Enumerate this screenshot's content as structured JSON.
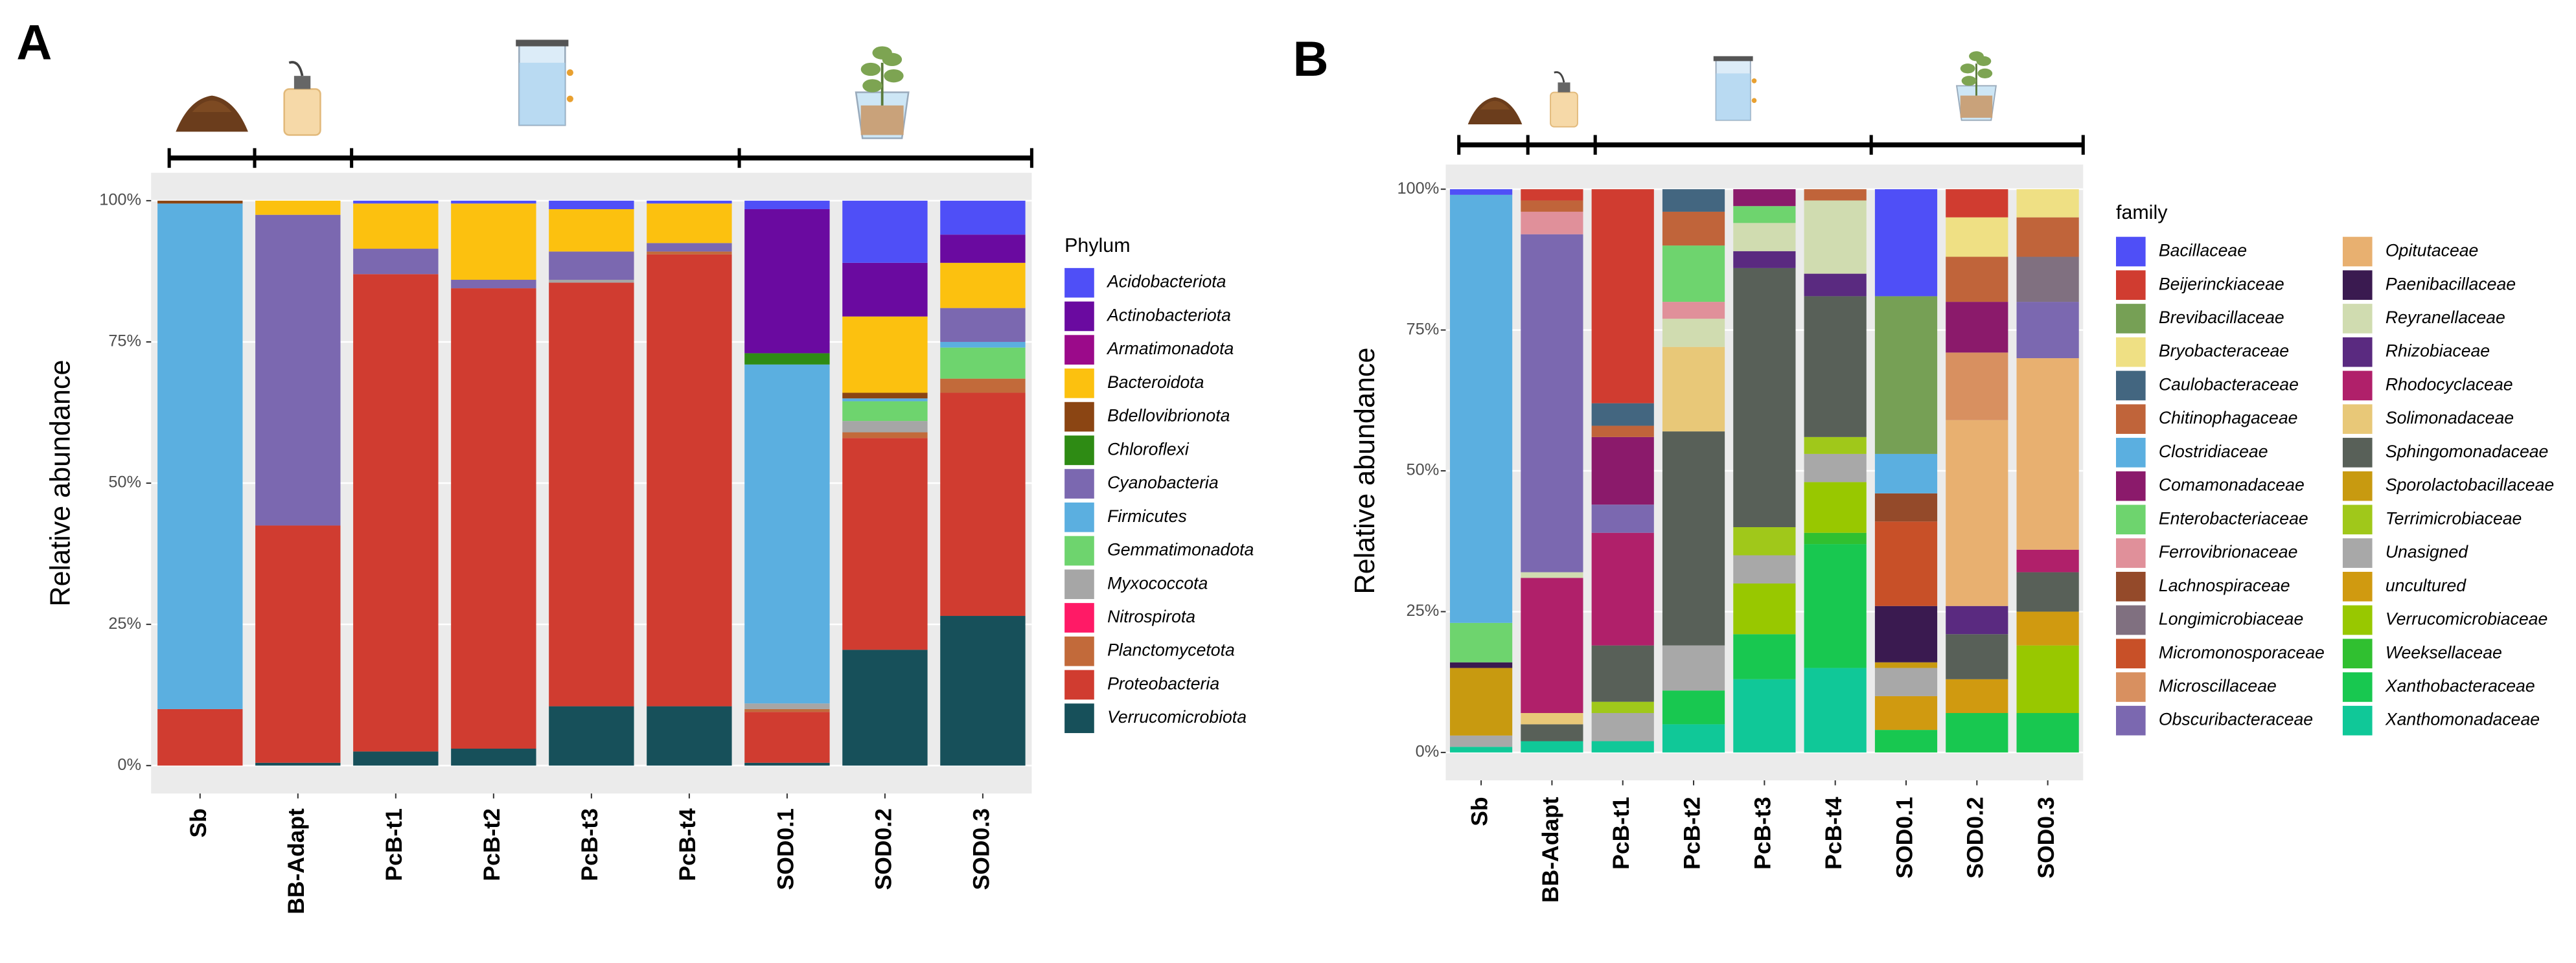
{
  "chart_data": [
    {
      "type": "bar",
      "stacked": true,
      "panel_label": "A",
      "y_label": "Relative abundance",
      "legend_title": "Phylum",
      "legend": "right",
      "grid": true,
      "categories": [
        "Sb",
        "BB-Adapt",
        "PcB-t1",
        "PcB-t2",
        "PcB-t3",
        "PcB-t4",
        "SOD0.1",
        "SOD0.2",
        "SOD0.3"
      ],
      "ylim": [
        0,
        100
      ],
      "yticks": [
        {
          "value": 0,
          "label": "0%"
        },
        {
          "value": 25,
          "label": "25%"
        },
        {
          "value": 50,
          "label": "50%"
        },
        {
          "value": 75,
          "label": "75%"
        },
        {
          "value": 100,
          "label": "100%"
        }
      ],
      "series": [
        {
          "name": "Acidobacteriota",
          "color": "#4f4ff7",
          "values": [
            0,
            0,
            0.5,
            0.5,
            1.5,
            0.5,
            1.5,
            11,
            6
          ]
        },
        {
          "name": "Actinobacteriota",
          "color": "#6a0aa0",
          "values": [
            0,
            0,
            0,
            0,
            0,
            0,
            25.5,
            9.5,
            5
          ]
        },
        {
          "name": "Armatimonadota",
          "color": "#9b0a8a",
          "values": [
            0,
            0,
            0,
            0,
            0,
            0,
            0,
            0,
            0
          ]
        },
        {
          "name": "Bacteroidota",
          "color": "#fcc10f",
          "values": [
            0,
            2.5,
            8,
            13.5,
            7.5,
            7,
            0,
            13.5,
            8
          ]
        },
        {
          "name": "Bdellovibrionota",
          "color": "#8b4513",
          "values": [
            0.5,
            0,
            0,
            0,
            0,
            0,
            0,
            1,
            0
          ]
        },
        {
          "name": "Chloroflexi",
          "color": "#2e8b14",
          "values": [
            0,
            0,
            0,
            0,
            0,
            0,
            2,
            0,
            0
          ]
        },
        {
          "name": "Cyanobacteria",
          "color": "#7b68b0",
          "values": [
            0,
            55,
            4.5,
            1.5,
            5,
            1.5,
            0,
            0,
            6
          ]
        },
        {
          "name": "Firmicutes",
          "color": "#5bafe0",
          "values": [
            89.5,
            0,
            0,
            0,
            0,
            0,
            60,
            0.5,
            1
          ]
        },
        {
          "name": "Gemmatimonadota",
          "color": "#6ed46e",
          "values": [
            0,
            0,
            0,
            0,
            0,
            0,
            0,
            3.5,
            5.5
          ]
        },
        {
          "name": "Myxococcota",
          "color": "#a6a6a6",
          "values": [
            0,
            0,
            0,
            0,
            0.5,
            0,
            1,
            2,
            0
          ]
        },
        {
          "name": "Nitrospirota",
          "color": "#ff1a66",
          "values": [
            0,
            0,
            0,
            0,
            0,
            0,
            0,
            0,
            0
          ]
        },
        {
          "name": "Planctomycetota",
          "color": "#c26a3a",
          "values": [
            0,
            0,
            0,
            0,
            0,
            0.5,
            0.5,
            1,
            2.5
          ]
        },
        {
          "name": "Proteobacteria",
          "color": "#d03c30",
          "values": [
            10,
            42,
            84.5,
            81.5,
            75,
            80,
            9,
            37.5,
            39.5
          ]
        },
        {
          "name": "Verrucomicrobiota",
          "color": "#17505a",
          "values": [
            0,
            0.5,
            2.5,
            3,
            10.5,
            10.5,
            0.5,
            20.5,
            26.5
          ]
        }
      ]
    },
    {
      "type": "bar",
      "stacked": true,
      "panel_label": "B",
      "y_label": "Relative abundance",
      "legend_title": "family",
      "legend": "right",
      "grid": true,
      "categories": [
        "Sb",
        "BB-Adapt",
        "PcB-t1",
        "PcB-t2",
        "PcB-t3",
        "PcB-t4",
        "SOD0.1",
        "SOD0.2",
        "SOD0.3"
      ],
      "ylim": [
        0,
        100
      ],
      "yticks": [
        {
          "value": 0,
          "label": "0%"
        },
        {
          "value": 25,
          "label": "25%"
        },
        {
          "value": 50,
          "label": "50%"
        },
        {
          "value": 75,
          "label": "75%"
        },
        {
          "value": 100,
          "label": "100%"
        }
      ],
      "series": [
        {
          "name": "Bacillaceae",
          "color": "#4f4ff7",
          "values": [
            1,
            0,
            0,
            0,
            0,
            0,
            19,
            0,
            0
          ]
        },
        {
          "name": "Beijerinckiaceae",
          "color": "#d03c30",
          "values": [
            0,
            2,
            38,
            0,
            0,
            0,
            0,
            5,
            0
          ]
        },
        {
          "name": "Brevibacillaceae",
          "color": "#76a055",
          "values": [
            0,
            0,
            0,
            0,
            0,
            0,
            28,
            0,
            0
          ]
        },
        {
          "name": "Bryobacteraceae",
          "color": "#efe084",
          "values": [
            0,
            0,
            0,
            0,
            0,
            0,
            0,
            7,
            5
          ]
        },
        {
          "name": "Caulobacteraceae",
          "color": "#436680",
          "values": [
            0,
            0,
            4,
            4,
            0,
            0,
            0,
            0,
            0
          ]
        },
        {
          "name": "Chitinophagaceae",
          "color": "#c0643a",
          "values": [
            0,
            2,
            2,
            6,
            0,
            2,
            0,
            8,
            7
          ]
        },
        {
          "name": "Clostridiaceae",
          "color": "#5bafe0",
          "values": [
            76,
            0,
            0,
            0,
            0,
            0,
            7,
            0,
            0
          ]
        },
        {
          "name": "Comamonadaceae",
          "color": "#8b1a6b",
          "values": [
            0,
            0,
            12,
            0,
            3,
            0,
            0,
            9,
            0
          ]
        },
        {
          "name": "Enterobacteriaceae",
          "color": "#6ed46e",
          "values": [
            7,
            0,
            0,
            10,
            3,
            0,
            0,
            0,
            0
          ]
        },
        {
          "name": "Ferrovibrionaceae",
          "color": "#e0909a",
          "values": [
            0,
            4,
            0,
            3,
            0,
            0,
            0,
            0,
            0
          ]
        },
        {
          "name": "Lachnospiraceae",
          "color": "#944a2a",
          "values": [
            0,
            0,
            0,
            0,
            0,
            0,
            5,
            0,
            0
          ]
        },
        {
          "name": "Longimicrobiaceae",
          "color": "#807080",
          "values": [
            0,
            0,
            0,
            0,
            0,
            0,
            0,
            0,
            8
          ]
        },
        {
          "name": "Micromonosporaceae",
          "color": "#c85028",
          "values": [
            0,
            0,
            0,
            0,
            0,
            0,
            15,
            0,
            0
          ]
        },
        {
          "name": "Microscillaceae",
          "color": "#d89060",
          "values": [
            0,
            0,
            0,
            0,
            0,
            0,
            0,
            12,
            0
          ]
        },
        {
          "name": "Obscuribacteraceae",
          "color": "#7b68b0",
          "values": [
            0,
            60,
            5,
            0,
            0,
            0,
            0,
            0,
            10
          ]
        },
        {
          "name": "Opitutaceae",
          "color": "#e8b070",
          "values": [
            0,
            0,
            0,
            0,
            0,
            0,
            0,
            33,
            34
          ]
        },
        {
          "name": "Paenibacillaceae",
          "color": "#3a1a50",
          "values": [
            1,
            0,
            0,
            0,
            0,
            0,
            10,
            0,
            0
          ]
        },
        {
          "name": "Reyranellaceae",
          "color": "#d0dcb0",
          "values": [
            0,
            1,
            0,
            5,
            5,
            13,
            0,
            0,
            0
          ]
        },
        {
          "name": "Rhizobiaceae",
          "color": "#5a2a80",
          "values": [
            0,
            0,
            0,
            0,
            3,
            4,
            0,
            5,
            0
          ]
        },
        {
          "name": "Rhodocyclaceae",
          "color": "#b0206a",
          "values": [
            0,
            24,
            20,
            0,
            0,
            0,
            0,
            0,
            4
          ]
        },
        {
          "name": "Solimonadaceae",
          "color": "#e8c878",
          "values": [
            0,
            2,
            0,
            15,
            0,
            0,
            0,
            0,
            0
          ]
        },
        {
          "name": "Sphingomonadaceae",
          "color": "#586058",
          "values": [
            0,
            3,
            10,
            38,
            46,
            25,
            0,
            8,
            7
          ]
        },
        {
          "name": "Sporolactobacillaceae",
          "color": "#c89a10",
          "values": [
            12,
            0,
            0,
            0,
            0,
            0,
            1,
            0,
            0
          ]
        },
        {
          "name": "Terrimicrobiaceae",
          "color": "#a0c81a",
          "values": [
            0,
            0,
            2,
            0,
            5,
            3,
            0,
            0,
            0
          ]
        },
        {
          "name": "Unasigned",
          "color": "#a8a8a8",
          "values": [
            2,
            0,
            5,
            8,
            5,
            5,
            5,
            0,
            0
          ]
        },
        {
          "name": "uncultured",
          "color": "#d09a10",
          "values": [
            0,
            0,
            0,
            0,
            0,
            0,
            6,
            6,
            6
          ]
        },
        {
          "name": "Verrucomicrobiaceae",
          "color": "#98c800",
          "values": [
            0,
            0,
            0,
            0,
            9,
            9,
            0,
            0,
            12
          ]
        },
        {
          "name": "Weeksellaceae",
          "color": "#30c030",
          "values": [
            0,
            0,
            0,
            0,
            0,
            2,
            0,
            0,
            0
          ]
        },
        {
          "name": "Xanthobacteraceae",
          "color": "#18c850",
          "values": [
            0,
            0,
            0,
            6,
            8,
            22,
            4,
            7,
            7
          ]
        },
        {
          "name": "Xanthomonadaceae",
          "color": "#10c898",
          "values": [
            1,
            2,
            2,
            5,
            13,
            15,
            0,
            0,
            0
          ]
        }
      ]
    }
  ]
}
